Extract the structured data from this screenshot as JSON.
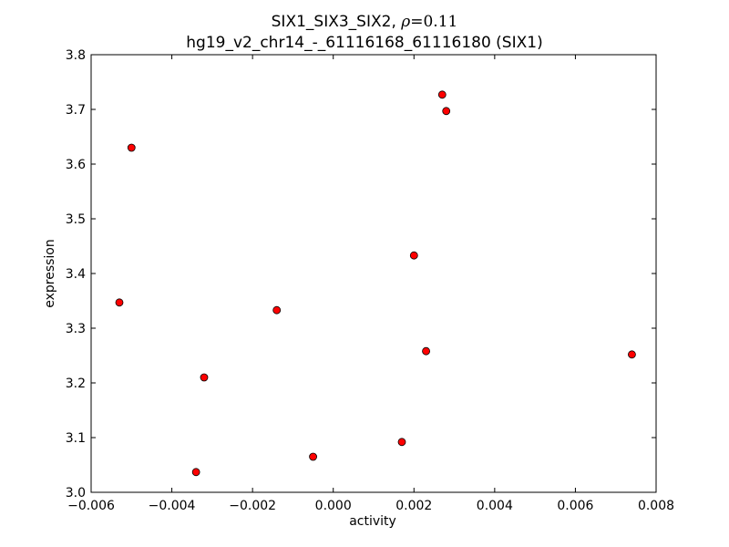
{
  "chart_data": {
    "type": "scatter",
    "title_line1_prefix": "SIX1_SIX3_SIX2, ",
    "title_rho_symbol": "ρ",
    "title_rho_value": "=0.11",
    "title_line2": "hg19_v2_chr14_-_61116168_61116180 (SIX1)",
    "xlabel": "activity",
    "ylabel": "expression",
    "xlim": [
      -0.006,
      0.008
    ],
    "ylim": [
      3.0,
      3.8
    ],
    "xticks": [
      -0.006,
      -0.004,
      -0.002,
      0.0,
      0.002,
      0.004,
      0.006,
      0.008
    ],
    "xtick_labels": [
      "−0.006",
      "−0.004",
      "−0.002",
      "0.000",
      "0.002",
      "0.004",
      "0.006",
      "0.008"
    ],
    "yticks": [
      3.0,
      3.1,
      3.2,
      3.3,
      3.4,
      3.5,
      3.6,
      3.7,
      3.8
    ],
    "ytick_labels": [
      "3.0",
      "3.1",
      "3.2",
      "3.3",
      "3.4",
      "3.5",
      "3.6",
      "3.7",
      "3.8"
    ],
    "grid": false,
    "marker_color": "#ff0000",
    "marker_edge": "#000000",
    "points": [
      {
        "x": -0.0053,
        "y": 3.347
      },
      {
        "x": -0.005,
        "y": 3.63
      },
      {
        "x": -0.0034,
        "y": 3.037
      },
      {
        "x": -0.0032,
        "y": 3.21
      },
      {
        "x": -0.0014,
        "y": 3.333
      },
      {
        "x": -0.0005,
        "y": 3.065
      },
      {
        "x": 0.0017,
        "y": 3.092
      },
      {
        "x": 0.002,
        "y": 3.433
      },
      {
        "x": 0.0023,
        "y": 3.258
      },
      {
        "x": 0.0027,
        "y": 3.727
      },
      {
        "x": 0.0028,
        "y": 3.697
      },
      {
        "x": 0.0074,
        "y": 3.252
      }
    ]
  }
}
